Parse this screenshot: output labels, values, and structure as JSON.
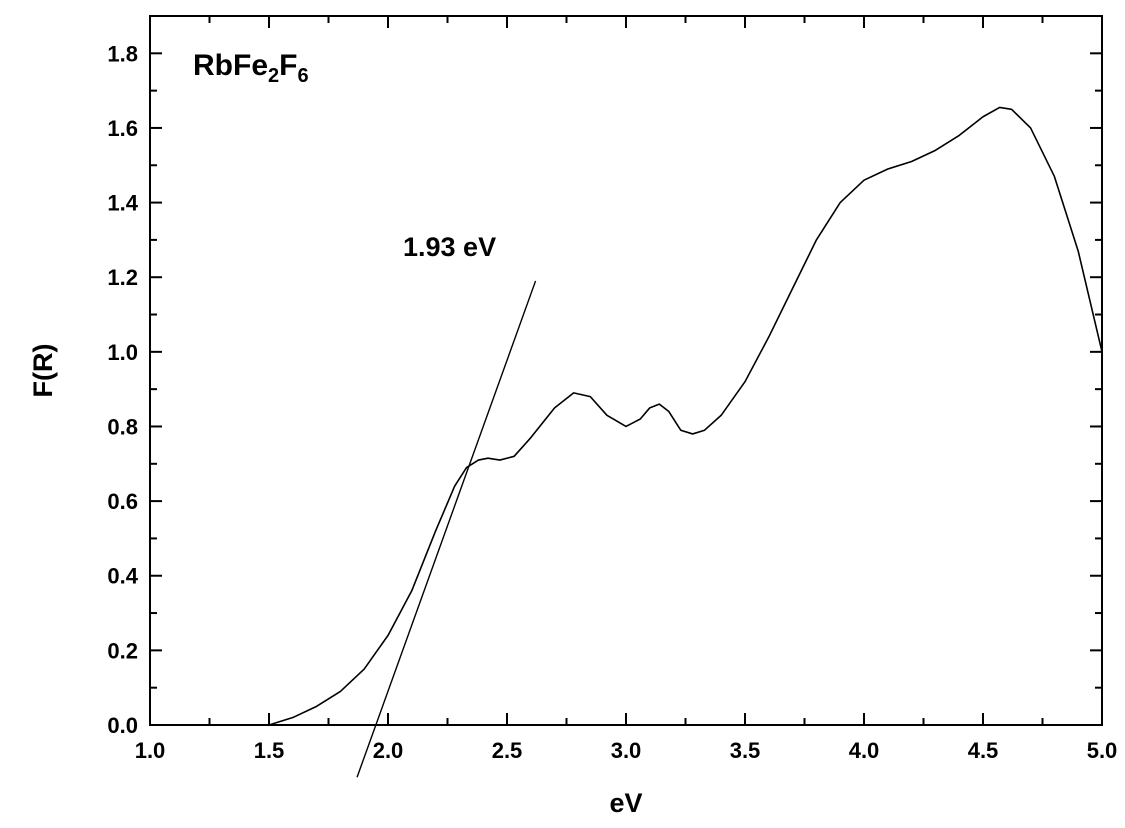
{
  "chart_data": {
    "type": "line",
    "title": {
      "parts": [
        {
          "text": "RbFe",
          "sub": false
        },
        {
          "text": "2",
          "sub": true
        },
        {
          "text": "F",
          "sub": false
        },
        {
          "text": "6",
          "sub": true
        }
      ]
    },
    "xlabel": "eV",
    "ylabel": "F(R)",
    "xlim": [
      1.0,
      5.0
    ],
    "ylim": [
      0.0,
      1.9
    ],
    "xticks": [
      1.0,
      1.5,
      2.0,
      2.5,
      3.0,
      3.5,
      4.0,
      4.5,
      5.0
    ],
    "xtick_labels": [
      "1.0",
      "1.5",
      "2.0",
      "2.5",
      "3.0",
      "3.5",
      "4.0",
      "4.5",
      "5.0"
    ],
    "yticks": [
      0.0,
      0.2,
      0.4,
      0.6,
      0.8,
      1.0,
      1.2,
      1.4,
      1.6,
      1.8
    ],
    "ytick_labels": [
      "0.0",
      "0.2",
      "0.4",
      "0.6",
      "0.8",
      "1.0",
      "1.2",
      "1.4",
      "1.6",
      "1.8"
    ],
    "grid": false,
    "series": [
      {
        "x": [
          1.5,
          1.6,
          1.7,
          1.8,
          1.9,
          2.0,
          2.1,
          2.2,
          2.28,
          2.33,
          2.38,
          2.42,
          2.47,
          2.53,
          2.6,
          2.7,
          2.78,
          2.85,
          2.92,
          3.0,
          3.06,
          3.1,
          3.14,
          3.18,
          3.23,
          3.28,
          3.33,
          3.4,
          3.5,
          3.6,
          3.7,
          3.8,
          3.9,
          4.0,
          4.1,
          4.2,
          4.3,
          4.4,
          4.5,
          4.57,
          4.62,
          4.7,
          4.8,
          4.9,
          5.0
        ],
        "y": [
          0.0,
          0.02,
          0.05,
          0.09,
          0.15,
          0.24,
          0.36,
          0.52,
          0.64,
          0.69,
          0.71,
          0.715,
          0.71,
          0.72,
          0.77,
          0.85,
          0.89,
          0.88,
          0.83,
          0.8,
          0.82,
          0.85,
          0.86,
          0.84,
          0.79,
          0.78,
          0.79,
          0.83,
          0.92,
          1.04,
          1.17,
          1.3,
          1.4,
          1.46,
          1.49,
          1.51,
          1.54,
          1.58,
          1.63,
          1.655,
          1.65,
          1.6,
          1.47,
          1.27,
          1.0
        ]
      }
    ],
    "tangent_line": {
      "x": [
        1.87,
        2.62
      ],
      "y": [
        -0.14,
        1.19
      ]
    },
    "annotations": [
      {
        "text": "1.93 eV"
      }
    ]
  }
}
